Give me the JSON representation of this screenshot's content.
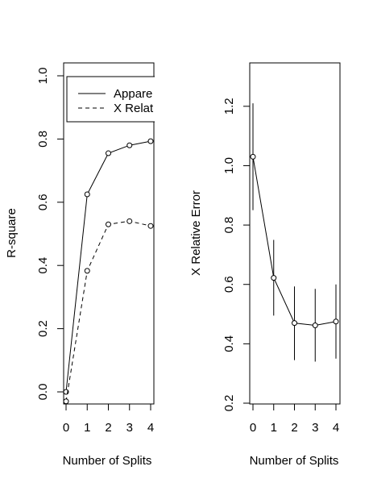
{
  "chart_data": [
    {
      "type": "line",
      "xlabel": "Number of Splits",
      "ylabel": "R-square",
      "xlim": [
        0,
        4
      ],
      "ylim": [
        -0.05,
        1.05
      ],
      "x_ticks": [
        0,
        1,
        2,
        3,
        4
      ],
      "y_ticks": [
        0.0,
        0.2,
        0.4,
        0.6,
        0.8,
        1.0
      ],
      "x_tick_labels": [
        "0",
        "1",
        "2",
        "3",
        "4"
      ],
      "y_tick_labels": [
        "0.0",
        "0.2",
        "0.4",
        "0.6",
        "0.8",
        "1.0"
      ],
      "legend": {
        "position": "top-right",
        "entries": [
          "Appare",
          "X Relat"
        ]
      },
      "series": [
        {
          "name": "Appare",
          "line_style": "solid",
          "x": [
            0,
            1,
            2,
            3,
            4
          ],
          "values": [
            0.0,
            0.625,
            0.755,
            0.78,
            0.793
          ]
        },
        {
          "name": "X Relat",
          "line_style": "dashed",
          "x": [
            0,
            1,
            2,
            3,
            4
          ],
          "values": [
            -0.03,
            0.383,
            0.53,
            0.54,
            0.525
          ]
        }
      ],
      "grid": false
    },
    {
      "type": "line",
      "xlabel": "Number of Splits",
      "ylabel": "X Relative Error",
      "xlim": [
        0,
        4
      ],
      "ylim": [
        0.2,
        1.35
      ],
      "x_ticks": [
        0,
        1,
        2,
        3,
        4
      ],
      "y_ticks": [
        0.2,
        0.4,
        0.6,
        0.8,
        1.0,
        1.2
      ],
      "x_tick_labels": [
        "0",
        "1",
        "2",
        "3",
        "4"
      ],
      "y_tick_labels": [
        "0.2",
        "0.4",
        "0.6",
        "0.8",
        "1.0",
        "1.2"
      ],
      "series": [
        {
          "x": [
            0,
            1,
            2,
            3,
            4
          ],
          "values": [
            1.03,
            0.622,
            0.47,
            0.462,
            0.475
          ],
          "error_low": [
            0.85,
            0.495,
            0.345,
            0.34,
            0.35
          ],
          "error_high": [
            1.21,
            0.75,
            0.593,
            0.585,
            0.6
          ]
        }
      ],
      "grid": false
    }
  ]
}
